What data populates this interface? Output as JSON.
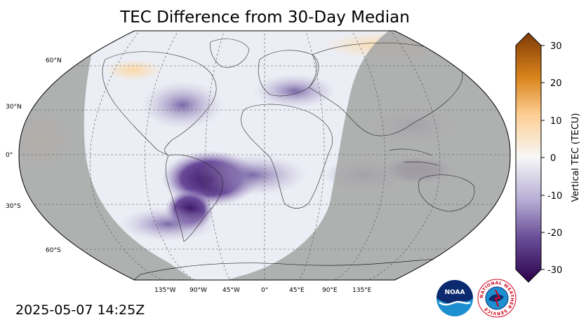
{
  "title": "TEC Difference from 30-Day Median",
  "timestamp": "2025-05-07 14:25Z",
  "map": {
    "projection": "robinson",
    "lat_labels": [
      "60°N",
      "30°N",
      "0°",
      "30°S",
      "60°S"
    ],
    "lon_labels": [
      "135°W",
      "90°W",
      "45°W",
      "0°",
      "45°E",
      "90°E",
      "135°E"
    ],
    "night_shading_color": "#a8a8a8",
    "ocean_background_color": "#eef0f6"
  },
  "colorbar": {
    "label": "Vertical TEC (TECU)",
    "ticks": [
      "30",
      "20",
      "10",
      "0",
      "-10",
      "-20",
      "-30"
    ],
    "range": [
      -30,
      30
    ],
    "colormap": "PuOr_r",
    "colors": {
      "max": "#7f3b08",
      "positive": "#f5a623",
      "zero": "#f7f7f7",
      "negative": "#8073ac",
      "min": "#2d004b"
    }
  },
  "logos": {
    "noaa_text": "NOAA",
    "nws_text": "NATIONAL WEATHER SERVICE"
  }
}
